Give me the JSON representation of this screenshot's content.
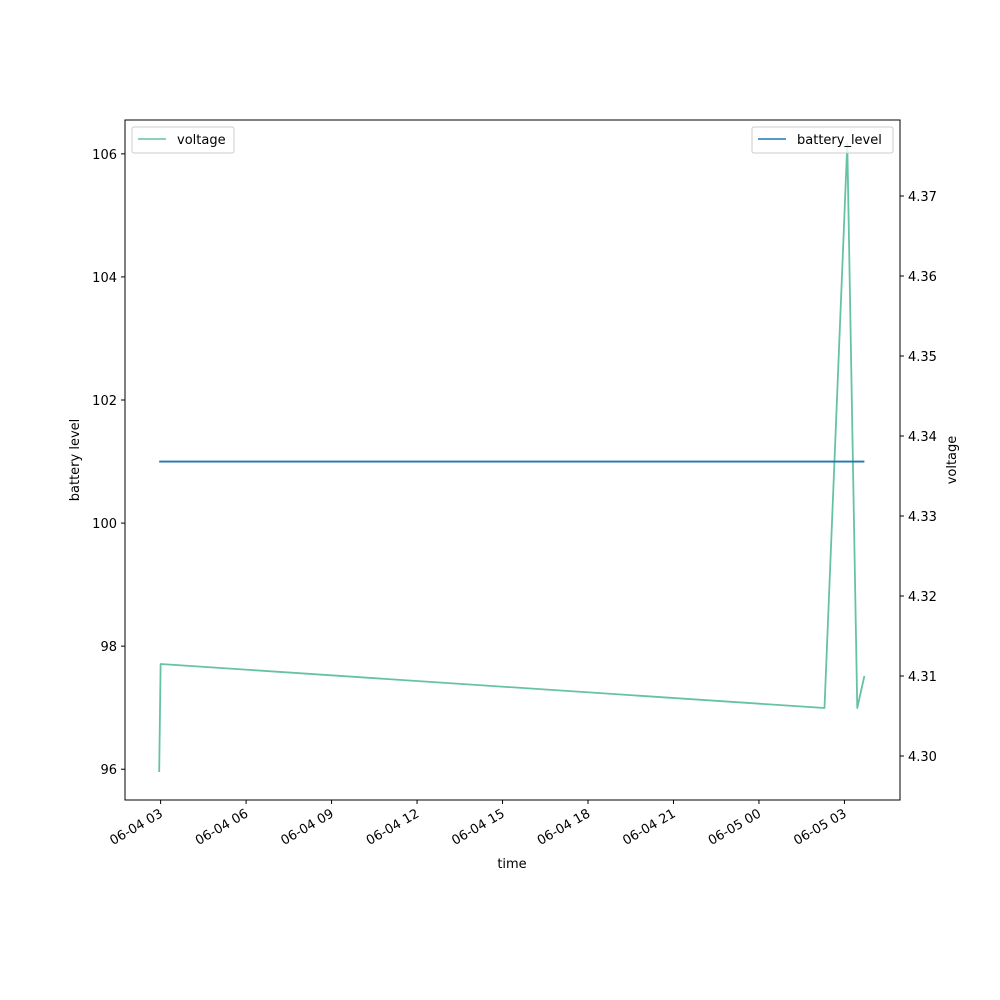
{
  "chart_data": {
    "type": "line",
    "title": "",
    "xlabel": "time",
    "ylabel_left": "battery level",
    "ylabel_right": "voltage",
    "x_ticks": [
      {
        "label": "06-04 03",
        "value": "2024-06-04 03:00"
      },
      {
        "label": "06-04 06",
        "value": "2024-06-04 06:00"
      },
      {
        "label": "06-04 09",
        "value": "2024-06-04 09:00"
      },
      {
        "label": "06-04 12",
        "value": "2024-06-04 12:00"
      },
      {
        "label": "06-04 15",
        "value": "2024-06-04 15:00"
      },
      {
        "label": "06-04 18",
        "value": "2024-06-04 18:00"
      },
      {
        "label": "06-04 21",
        "value": "2024-06-04 21:00"
      },
      {
        "label": "06-05 00",
        "value": "2024-06-05 00:00"
      },
      {
        "label": "06-05 03",
        "value": "2024-06-05 03:00"
      }
    ],
    "x_range": [
      "2024-06-04 01:45",
      "2024-06-05 04:57"
    ],
    "y_left": {
      "range": [
        95.5,
        106.55
      ],
      "ticks": [
        96,
        98,
        100,
        102,
        104,
        106
      ]
    },
    "y_right": {
      "range": [
        4.2945,
        4.3795
      ],
      "ticks": [
        "4.30",
        "4.31",
        "4.32",
        "4.33",
        "4.34",
        "4.35",
        "4.36",
        "4.37"
      ]
    },
    "series": [
      {
        "name": "battery_level",
        "axis": "left",
        "color": "#1f77b4",
        "points": [
          {
            "x": "2024-06-04 02:57",
            "y": 101
          },
          {
            "x": "2024-06-05 03:42",
            "y": 101
          }
        ]
      },
      {
        "name": "voltage",
        "axis": "right",
        "color": "#66c2a5",
        "points": [
          {
            "x": "2024-06-04 02:57",
            "y": 4.298
          },
          {
            "x": "2024-06-04 03:00",
            "y": 4.3115
          },
          {
            "x": "2024-06-05 02:18",
            "y": 4.306
          },
          {
            "x": "2024-06-05 03:06",
            "y": 4.3765
          },
          {
            "x": "2024-06-05 03:27",
            "y": 4.306
          },
          {
            "x": "2024-06-05 03:42",
            "y": 4.31
          }
        ]
      }
    ],
    "legend_left": {
      "placement": "upper-left",
      "label": "voltage"
    },
    "legend_right": {
      "placement": "upper-right",
      "label": "battery_level"
    },
    "grid": false
  }
}
